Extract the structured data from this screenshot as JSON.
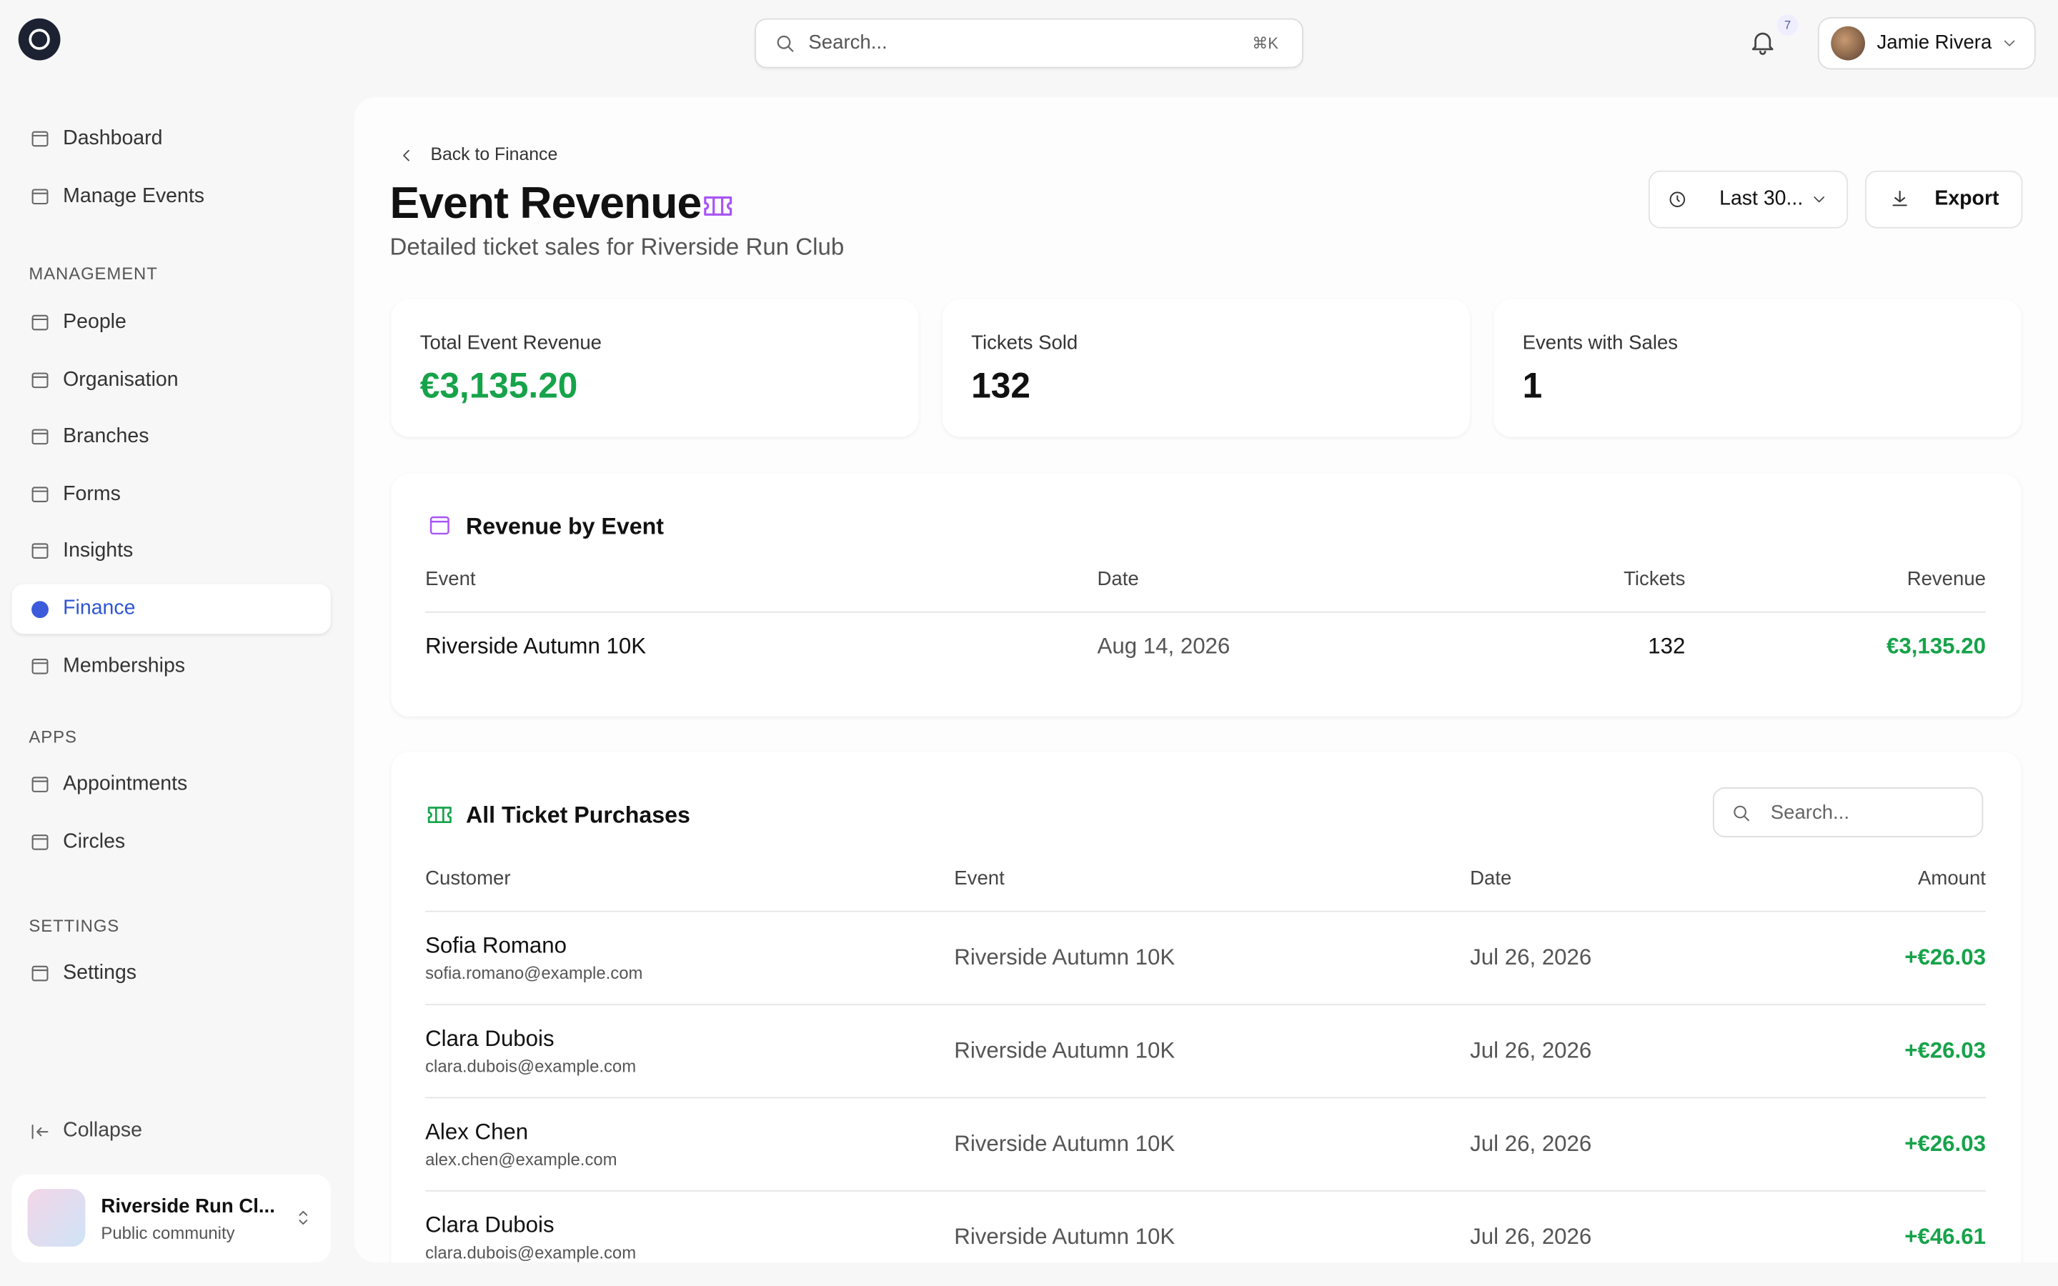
{
  "header": {
    "search_placeholder": "Search...",
    "shortcut": "⌘K",
    "notification_count": "7",
    "user_name": "Jamie Rivera"
  },
  "sidebar": {
    "top_items": [
      "Dashboard",
      "Manage Events"
    ],
    "sections": [
      {
        "label": "MANAGEMENT",
        "items": [
          "People",
          "Organisation",
          "Branches",
          "Forms",
          "Insights",
          "Finance",
          "Memberships"
        ]
      },
      {
        "label": "APPS",
        "items": [
          "Appointments",
          "Circles"
        ]
      },
      {
        "label": "SETTINGS",
        "items": [
          "Settings"
        ]
      }
    ],
    "active": "Finance",
    "collapse": "Collapse",
    "org": {
      "name": "Riverside Run Cl...",
      "type": "Public community"
    }
  },
  "page": {
    "back": "Back to Finance",
    "title": "Event Revenue",
    "subtitle": "Detailed ticket sales for Riverside Run Club",
    "period": "Last 30...",
    "export": "Export"
  },
  "stats": [
    {
      "label": "Total Event Revenue",
      "value": "€3,135.20"
    },
    {
      "label": "Tickets Sold",
      "value": "132"
    },
    {
      "label": "Events with Sales",
      "value": "1"
    }
  ],
  "revenue_table": {
    "title": "Revenue by Event",
    "columns": [
      "Event",
      "Date",
      "Tickets",
      "Revenue"
    ],
    "rows": [
      [
        "Riverside Autumn 10K",
        "Aug 14, 2026",
        "132",
        "€3,135.20"
      ]
    ]
  },
  "purchases_table": {
    "title": "All Ticket Purchases",
    "search_placeholder": "Search...",
    "columns": [
      "Customer",
      "Event",
      "Date",
      "Amount"
    ],
    "rows": [
      {
        "name": "Sofia Romano",
        "email": "sofia.romano@example.com",
        "event": "Riverside Autumn 10K",
        "date": "Jul 26, 2026",
        "amount": "+€26.03"
      },
      {
        "name": "Clara Dubois",
        "email": "clara.dubois@example.com",
        "event": "Riverside Autumn 10K",
        "date": "Jul 26, 2026",
        "amount": "+€26.03"
      },
      {
        "name": "Alex Chen",
        "email": "alex.chen@example.com",
        "event": "Riverside Autumn 10K",
        "date": "Jul 26, 2026",
        "amount": "+€26.03"
      },
      {
        "name": "Clara Dubois",
        "email": "clara.dubois@example.com",
        "event": "Riverside Autumn 10K",
        "date": "Jul 26, 2026",
        "amount": "+€46.61"
      }
    ]
  }
}
